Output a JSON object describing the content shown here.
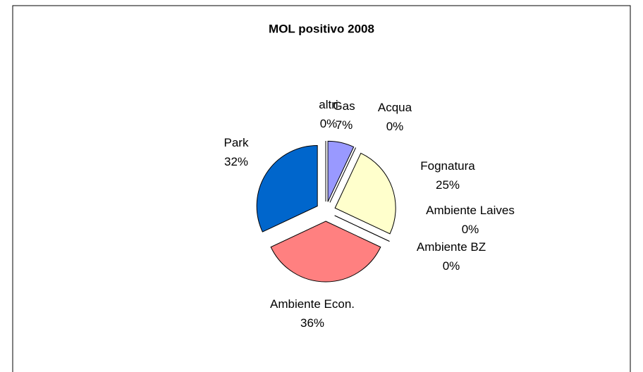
{
  "chart_data": {
    "type": "pie",
    "title": "MOL positivo 2008",
    "categories": [
      "Gas",
      "Acqua",
      "Fognatura",
      "Ambiente Laives",
      "Ambiente BZ",
      "Ambiente Econ.",
      "Park",
      "altri"
    ],
    "values": [
      7,
      0,
      25,
      0,
      0,
      36,
      32,
      0
    ],
    "value_labels": [
      "7%",
      "0%",
      "25%",
      "0%",
      "0%",
      "36%",
      "32%",
      "0%"
    ],
    "colors": [
      "#9999ff",
      "#993366",
      "#ffffcc",
      "#ccffff",
      "#660066",
      "#ff8080",
      "#0066cc",
      "#ccccff"
    ]
  }
}
